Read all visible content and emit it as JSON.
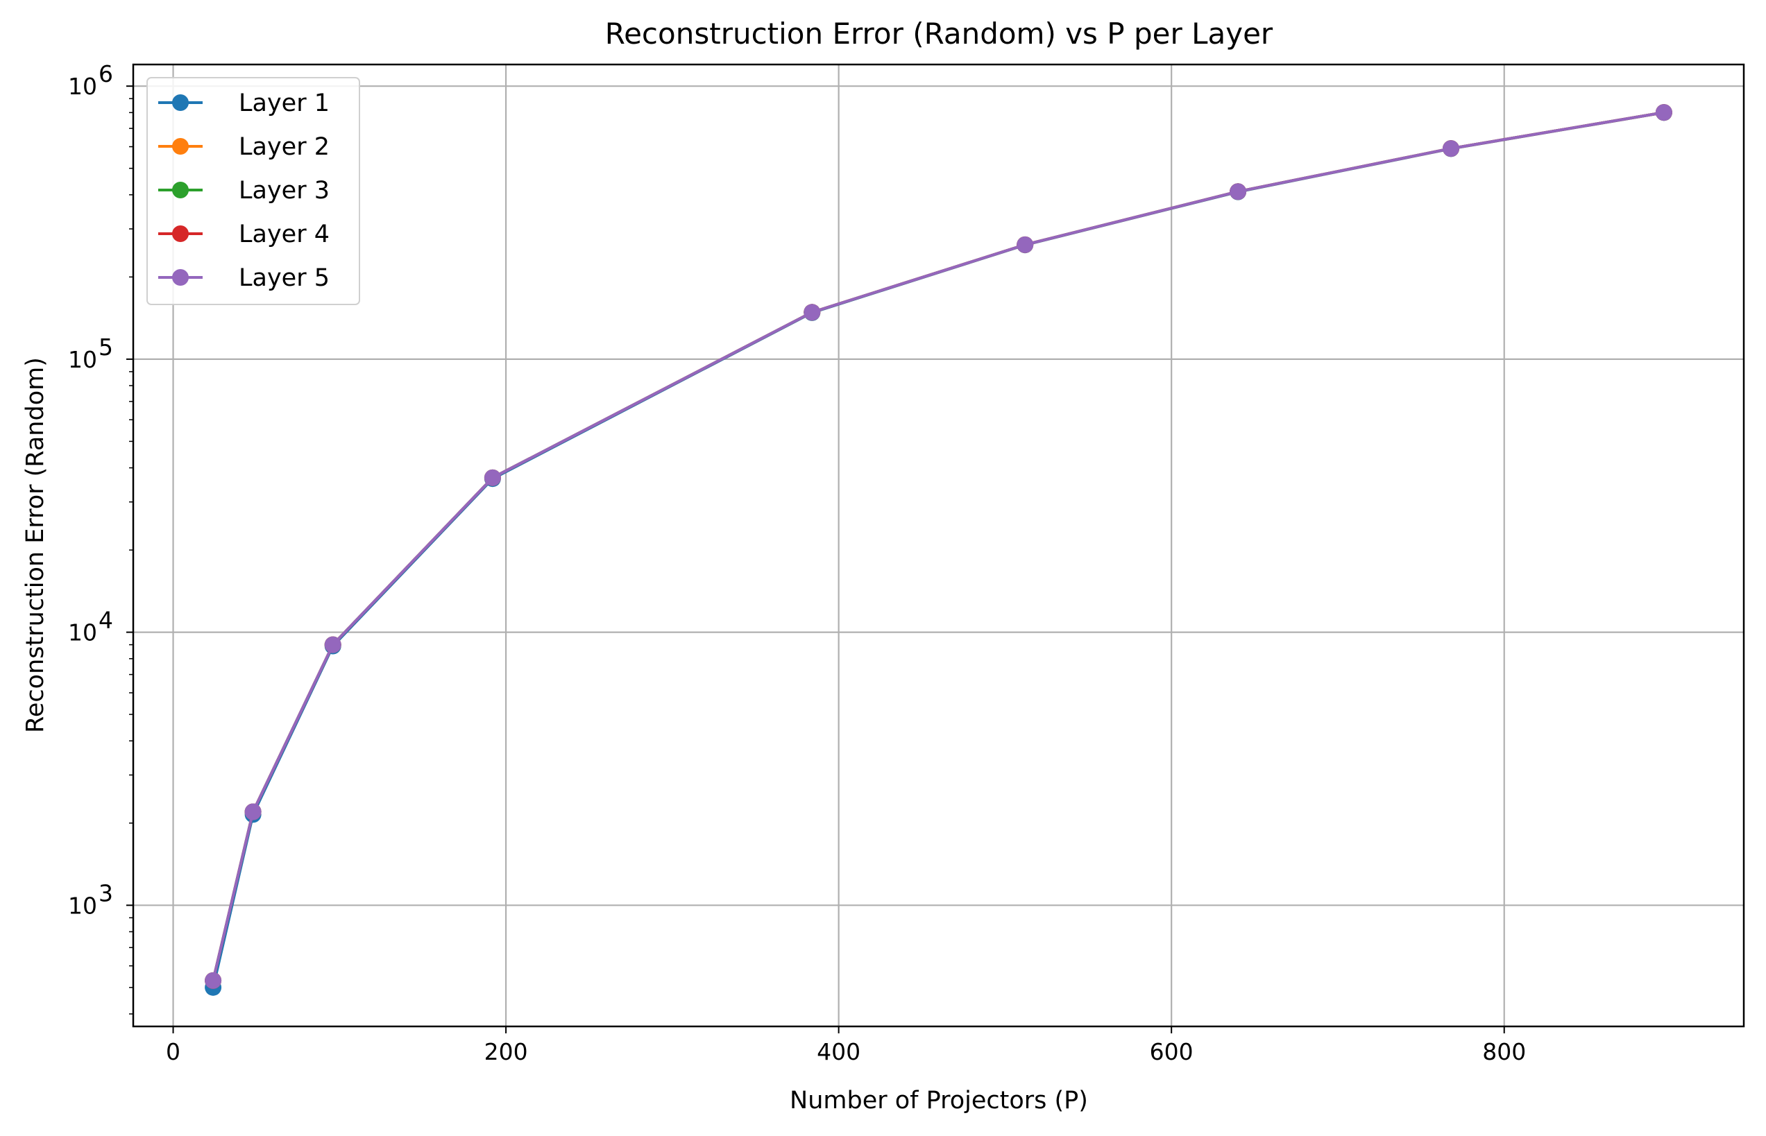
{
  "chart_data": {
    "type": "line",
    "title": "Reconstruction Error (Random) vs P per Layer",
    "xlabel": "Number of Projectors (P)",
    "ylabel": "Reconstruction Error (Random)",
    "xscale": "linear",
    "yscale": "log",
    "xlim": [
      -24,
      944
    ],
    "ylim": [
      360,
      1200000
    ],
    "x_ticks": [
      0,
      200,
      400,
      600,
      800
    ],
    "y_ticks": [
      {
        "value": 1000,
        "base": "10",
        "exp": "3"
      },
      {
        "value": 10000,
        "base": "10",
        "exp": "4"
      },
      {
        "value": 100000,
        "base": "10",
        "exp": "5"
      },
      {
        "value": 1000000,
        "base": "10",
        "exp": "6"
      }
    ],
    "grid": true,
    "legend_position": "top-left",
    "marker": "circle",
    "x": [
      24,
      48,
      96,
      192,
      384,
      512,
      640,
      768,
      896
    ],
    "series": [
      {
        "name": "Layer 1",
        "color": "#1f77b4",
        "values": [
          500,
          2150,
          8900,
          36500,
          148000,
          262000,
          410000,
          590000,
          800000
        ]
      },
      {
        "name": "Layer 2",
        "color": "#ff7f0e",
        "values": [
          530,
          2200,
          9000,
          36800,
          148500,
          262500,
          411000,
          591000,
          801000
        ]
      },
      {
        "name": "Layer 3",
        "color": "#2ca02c",
        "values": [
          530,
          2200,
          9000,
          36800,
          148500,
          262500,
          411000,
          591000,
          801000
        ]
      },
      {
        "name": "Layer 4",
        "color": "#d62728",
        "values": [
          530,
          2200,
          9000,
          36800,
          148500,
          262500,
          411000,
          591000,
          801000
        ]
      },
      {
        "name": "Layer 5",
        "color": "#9467bd",
        "values": [
          530,
          2200,
          9000,
          36800,
          148500,
          262500,
          411000,
          591000,
          801000
        ]
      }
    ]
  }
}
